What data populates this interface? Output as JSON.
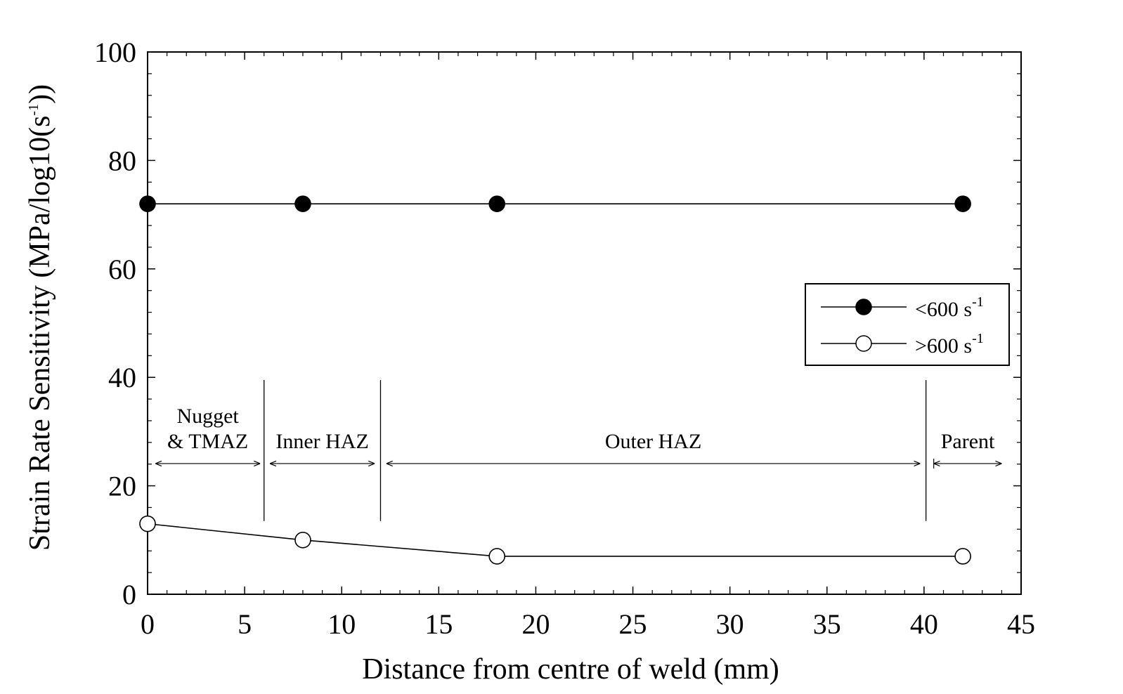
{
  "chart_data": {
    "type": "line",
    "xlabel": "Distance from centre of weld (mm)",
    "ylabel_main": "Strain Rate Sensitivity (MPa/log10(s",
    "ylabel_sup": "-1",
    "ylabel_end": "))",
    "xlim": [
      0,
      45
    ],
    "ylim": [
      0,
      100
    ],
    "x_ticks": [
      0,
      5,
      10,
      15,
      20,
      25,
      30,
      35,
      40,
      45
    ],
    "y_ticks": [
      0,
      20,
      40,
      60,
      80,
      100
    ],
    "grid": false,
    "legend_position": "right-middle",
    "series": [
      {
        "name": "<600 s",
        "name_sup": "-1",
        "marker": "filled-circle",
        "color": "#000000",
        "points": [
          {
            "x": 0,
            "y": 72
          },
          {
            "x": 8,
            "y": 72
          },
          {
            "x": 18,
            "y": 72
          },
          {
            "x": 42,
            "y": 72
          }
        ]
      },
      {
        "name": ">600 s",
        "name_sup": "-1",
        "marker": "open-circle",
        "color": "#000000",
        "points": [
          {
            "x": 0,
            "y": 13
          },
          {
            "x": 8,
            "y": 10
          },
          {
            "x": 18,
            "y": 7
          },
          {
            "x": 42,
            "y": 7
          }
        ]
      }
    ],
    "region_boundaries_mm": [
      6,
      12,
      40.1
    ],
    "regions": [
      {
        "label_lines": [
          "Nugget",
          "& TMAZ"
        ],
        "from": 0.4,
        "to": 5.8
      },
      {
        "label_lines": [
          "Inner HAZ"
        ],
        "from": 6.3,
        "to": 11.7
      },
      {
        "label_lines": [
          "Outer HAZ"
        ],
        "from": 12.3,
        "to": 39.8
      },
      {
        "label_lines": [
          "Parent"
        ],
        "from": 40.5,
        "to": 44
      }
    ]
  }
}
